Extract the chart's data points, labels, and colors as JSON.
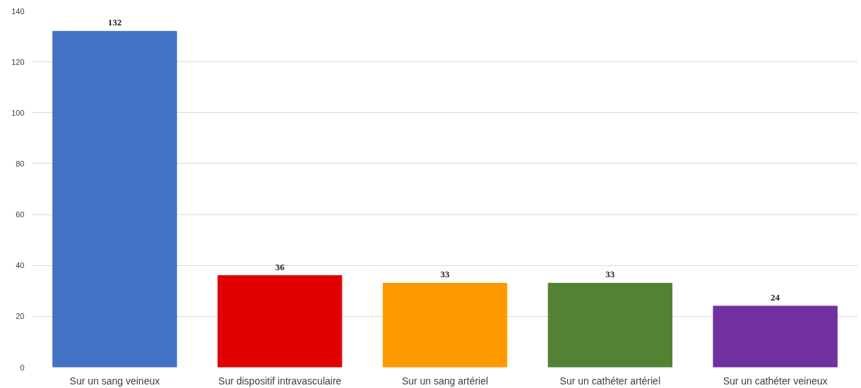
{
  "chart_data": {
    "type": "bar",
    "categories": [
      "Sur un sang veineux",
      "Sur dispositif intravasculaire",
      "Sur un sang artériel",
      "Sur un cathéter artériel",
      "Sur un cathéter veineux"
    ],
    "values": [
      132,
      36,
      33,
      33,
      24
    ],
    "colors": [
      "#4472c4",
      "#e00000",
      "#ff9900",
      "#548235",
      "#7030a0"
    ],
    "ylim": [
      0,
      140
    ],
    "yticks": [
      0,
      20,
      40,
      60,
      80,
      100,
      120,
      140
    ],
    "grid": "y",
    "data_labels": true
  }
}
